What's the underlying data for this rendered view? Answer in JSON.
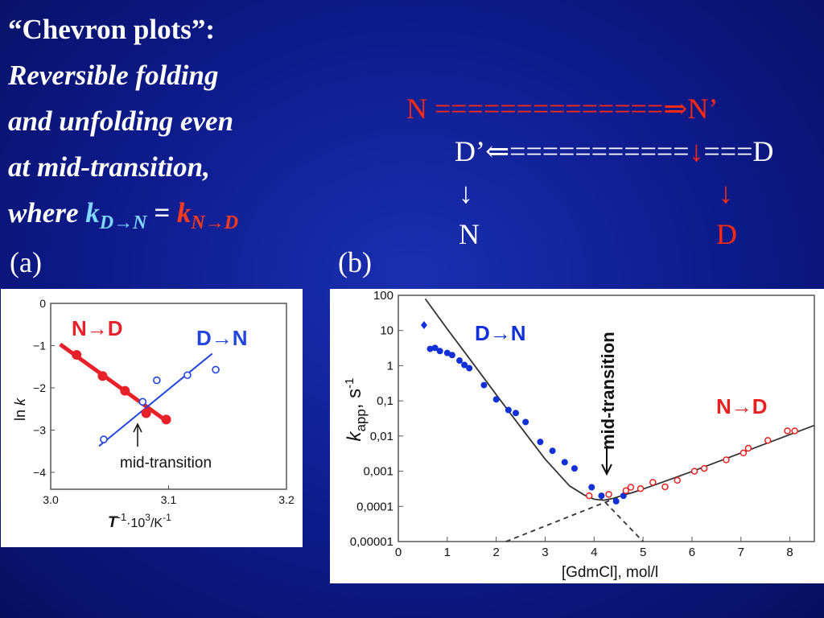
{
  "title": {
    "line1": "“Chevron plots”:",
    "line2": "Reversible folding",
    "line3": "and unfolding even",
    "line4": "at mid-transition,",
    "line5_prefix": "where ",
    "k": "k",
    "sub_dn": "D→N",
    "equals": " = ",
    "sub_nd": "N→D"
  },
  "scheme": {
    "row1_left": "N ",
    "row1_arrow": "==============⇒",
    "row1_right": "N’",
    "row2_left": "D’",
    "row2_arrow": "⇐===========",
    "row2_down": "↓",
    "row2_tail": "===D",
    "row3_left": "↓",
    "row3_right": "↓",
    "row4_left": "N",
    "row4_right": "D"
  },
  "panel_labels": {
    "a": "(a)",
    "b": "(b)"
  },
  "chart_data": [
    {
      "type": "scatter",
      "panel": "(a)",
      "xlabel": "T-1·103/K-1",
      "ylabel": "ln k",
      "xlim": [
        3.0,
        3.2
      ],
      "ylim": [
        -4.4,
        0
      ],
      "x_ticks": [
        "3.0",
        "3.1",
        "3.2"
      ],
      "y_ticks": [
        "0",
        "−1",
        "−2",
        "−3",
        "−4"
      ],
      "annotation": "mid-transition",
      "series": [
        {
          "name": "N→D",
          "color": "#e8202a",
          "marker": "filled",
          "x": [
            3.022,
            3.044,
            3.063,
            3.081,
            3.098
          ],
          "y": [
            -1.22,
            -1.72,
            -2.07,
            -2.6,
            -2.75
          ],
          "fit": {
            "x": [
              3.008,
              3.1
            ],
            "y": [
              -0.97,
              -2.82
            ]
          }
        },
        {
          "name": "D→N",
          "color": "#2244dd",
          "marker": "open",
          "x": [
            3.045,
            3.078,
            3.09,
            3.116,
            3.14
          ],
          "y": [
            -3.22,
            -2.33,
            -1.82,
            -1.7,
            -1.57
          ],
          "fit": {
            "x": [
              3.041,
              3.137
            ],
            "y": [
              -3.38,
              -1.19
            ]
          }
        }
      ]
    },
    {
      "type": "scatter",
      "panel": "(b)",
      "xlabel": "[GdmCl], mol/l",
      "ylabel": "kapp, s-1",
      "yscale": "log",
      "xlim": [
        0,
        8.5
      ],
      "ylim": [
        1e-05,
        100
      ],
      "x_ticks": [
        "0",
        "1",
        "2",
        "3",
        "4",
        "5",
        "6",
        "7",
        "8"
      ],
      "y_ticks": [
        "0,00001",
        "0,0001",
        "0,001",
        "0,01",
        "0,1",
        "1",
        "10",
        "100"
      ],
      "annotation": "mid-transition",
      "series": [
        {
          "name": "D→N",
          "color": "#1030d8",
          "marker": "filled",
          "x": [
            0.65,
            0.75,
            0.85,
            1.0,
            1.1,
            1.25,
            1.35,
            1.45,
            1.75,
            2.0,
            2.25,
            2.4,
            2.6,
            2.9,
            3.15,
            3.4,
            3.6,
            3.95,
            4.15,
            4.45,
            4.6
          ],
          "y": [
            3.0,
            3.2,
            2.6,
            2.3,
            2.0,
            1.4,
            1.05,
            0.85,
            0.28,
            0.11,
            0.055,
            0.045,
            0.025,
            0.0068,
            0.0038,
            0.0018,
            0.0012,
            0.00035,
            0.0002,
            0.00014,
            0.0002
          ]
        },
        {
          "name": "N→D",
          "color": "#e82020",
          "marker": "open",
          "x": [
            3.9,
            4.3,
            4.65,
            4.75,
            4.95,
            5.2,
            5.45,
            5.7,
            6.05,
            6.25,
            6.7,
            7.05,
            7.15,
            7.55,
            7.95,
            8.1
          ],
          "y": [
            0.0002,
            0.00022,
            0.00028,
            0.00035,
            0.00032,
            0.00048,
            0.00036,
            0.00055,
            0.001,
            0.0012,
            0.0021,
            0.0033,
            0.0045,
            0.0075,
            0.014,
            0.014
          ]
        },
        {
          "name": "",
          "color": "#333333",
          "marker": "line",
          "x": [
            0.55,
            1.0,
            1.5,
            2.0,
            2.5,
            3.0,
            3.5,
            3.8,
            4.0,
            4.2,
            4.4,
            4.6,
            4.8,
            5.0,
            5.5,
            6.0,
            6.5,
            7.0,
            7.5,
            8.0,
            8.5
          ],
          "y": [
            80,
            11,
            1.3,
            0.15,
            0.018,
            0.0022,
            0.00038,
            0.00021,
            0.00016,
            0.00015,
            0.00017,
            0.00021,
            0.00025,
            0.00031,
            0.00055,
            0.00098,
            0.0018,
            0.0033,
            0.006,
            0.011,
            0.02
          ]
        }
      ]
    }
  ]
}
